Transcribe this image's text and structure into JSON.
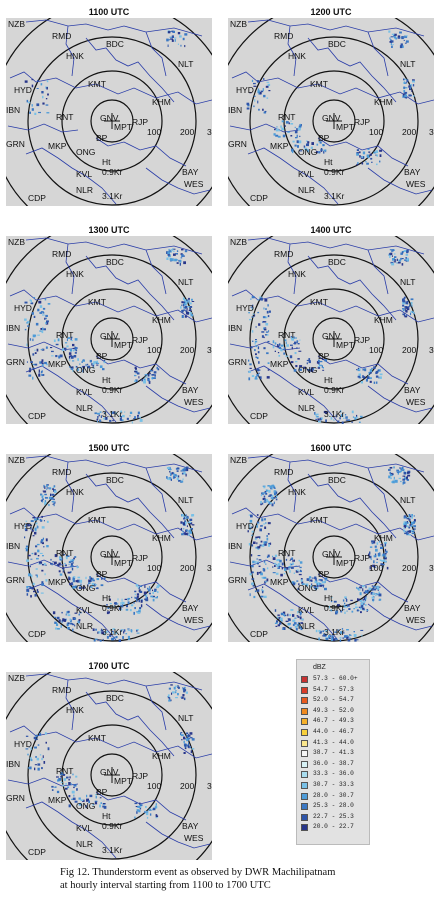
{
  "panels": [
    {
      "time": "1100 UTC",
      "echo_level": 1
    },
    {
      "time": "1200 UTC",
      "echo_level": 2
    },
    {
      "time": "1300 UTC",
      "echo_level": 3
    },
    {
      "time": "1400 UTC",
      "echo_level": 3
    },
    {
      "time": "1500 UTC",
      "echo_level": 4
    },
    {
      "time": "1600 UTC",
      "echo_level": 5
    },
    {
      "time": "1700 UTC",
      "echo_level": 2
    }
  ],
  "stations": {
    "nzb": "NZB",
    "rmd": "RMD",
    "hnk": "HNK",
    "bdc": "BDC",
    "nlt": "NLT",
    "hyd": "HYD",
    "kmt": "KMT",
    "khm": "KHM",
    "ibn": "IBN",
    "rnt": "RNT",
    "gnv": "GNV",
    "rjp": "RJP",
    "mpt": "MPT",
    "bp": "BP",
    "grn": "GRN",
    "mkp": "MKP",
    "ong": "ONG",
    "ht": "Ht",
    "kvl": "KVL",
    "bay": "BAY",
    "nlr": "NLR",
    "wes": "WES",
    "cdp": "CDP",
    "tpt": "TPT",
    "shr": "SHR"
  },
  "range_labels": {
    "r100": "100",
    "r200": "200",
    "r300": "3",
    "h1": "0.9Kr",
    "h2": "3.1Kr"
  },
  "legend": {
    "unit": "dBZ",
    "entries": [
      {
        "label": "57.3 -  60.0+",
        "color": "#c83232"
      },
      {
        "label": "54.7 -  57.3",
        "color": "#d83c28"
      },
      {
        "label": "52.0 -  54.7",
        "color": "#e85a1e"
      },
      {
        "label": "49.3 -  52.0",
        "color": "#f08a1e"
      },
      {
        "label": "46.7 -  49.3",
        "color": "#f5b02a"
      },
      {
        "label": "44.0 -  46.7",
        "color": "#f8d03c"
      },
      {
        "label": "41.3 -  44.0",
        "color": "#fae68c"
      },
      {
        "label": "38.7 -  41.3",
        "color": "#f4f4f4"
      },
      {
        "label": "36.0 -  38.7",
        "color": "#d6f0f4"
      },
      {
        "label": "33.3 -  36.0",
        "color": "#a8dcee"
      },
      {
        "label": "30.7 -  33.3",
        "color": "#78c0e6"
      },
      {
        "label": "28.0 -  30.7",
        "color": "#4e9cd8"
      },
      {
        "label": "25.3 -  28.0",
        "color": "#3a78c4"
      },
      {
        "label": "22.7 -  25.3",
        "color": "#2e54a8"
      },
      {
        "label": "20.0 -  22.7",
        "color": "#28368a"
      }
    ]
  },
  "caption": {
    "line1": "Fig 12. Thunderstorm event as observed by DWR Machilipatnam",
    "line2": "at hourly interval starting from 1100 to 1700 UTC"
  }
}
